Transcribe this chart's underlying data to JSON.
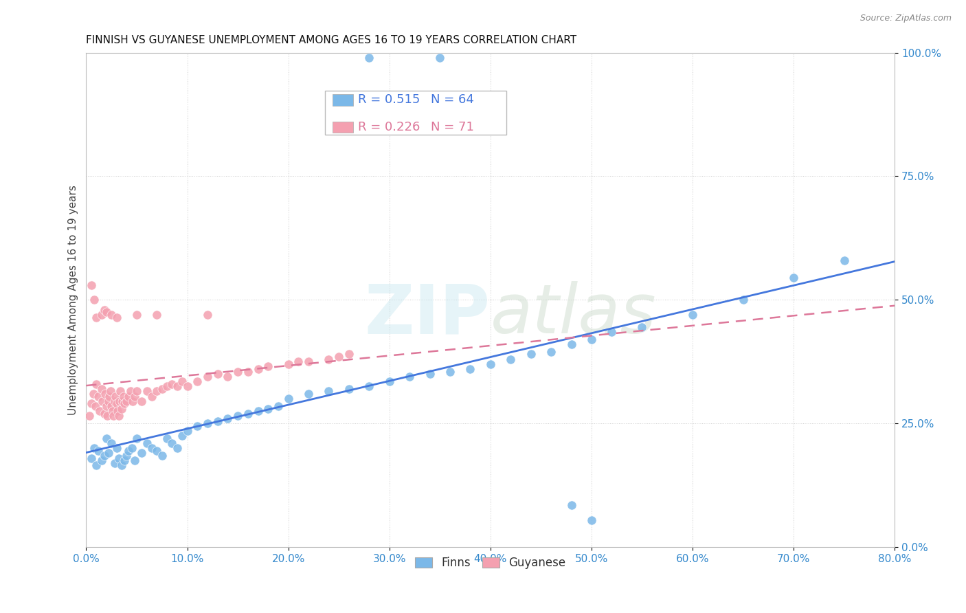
{
  "title": "FINNISH VS GUYANESE UNEMPLOYMENT AMONG AGES 16 TO 19 YEARS CORRELATION CHART",
  "source": "Source: ZipAtlas.com",
  "ylabel": "Unemployment Among Ages 16 to 19 years",
  "xlim": [
    0.0,
    0.8
  ],
  "ylim": [
    0.0,
    1.0
  ],
  "legend_label1": "Finns",
  "legend_label2": "Guyanese",
  "R1": 0.515,
  "N1": 64,
  "R2": 0.226,
  "N2": 71,
  "color_finns": "#7BB8E8",
  "color_guyanese": "#F4A0B0",
  "color_line_finns": "#4477DD",
  "color_line_guyanese": "#DD7799",
  "background_color": "#FFFFFF",
  "finns_x": [
    0.005,
    0.008,
    0.01,
    0.012,
    0.015,
    0.018,
    0.02,
    0.022,
    0.025,
    0.028,
    0.03,
    0.032,
    0.035,
    0.038,
    0.04,
    0.042,
    0.045,
    0.048,
    0.05,
    0.055,
    0.06,
    0.065,
    0.07,
    0.075,
    0.08,
    0.085,
    0.09,
    0.095,
    0.1,
    0.11,
    0.12,
    0.13,
    0.14,
    0.15,
    0.16,
    0.17,
    0.18,
    0.19,
    0.2,
    0.22,
    0.24,
    0.26,
    0.28,
    0.3,
    0.32,
    0.34,
    0.36,
    0.38,
    0.4,
    0.42,
    0.44,
    0.46,
    0.48,
    0.5,
    0.52,
    0.55,
    0.6,
    0.65,
    0.7,
    0.75,
    0.28,
    0.35,
    0.48,
    0.5
  ],
  "finns_y": [
    0.18,
    0.2,
    0.165,
    0.195,
    0.175,
    0.185,
    0.22,
    0.19,
    0.21,
    0.17,
    0.2,
    0.18,
    0.165,
    0.175,
    0.185,
    0.195,
    0.2,
    0.175,
    0.22,
    0.19,
    0.21,
    0.2,
    0.195,
    0.185,
    0.22,
    0.21,
    0.2,
    0.225,
    0.235,
    0.245,
    0.25,
    0.255,
    0.26,
    0.265,
    0.27,
    0.275,
    0.28,
    0.285,
    0.3,
    0.31,
    0.315,
    0.32,
    0.325,
    0.335,
    0.345,
    0.35,
    0.355,
    0.36,
    0.37,
    0.38,
    0.39,
    0.395,
    0.41,
    0.42,
    0.435,
    0.445,
    0.47,
    0.5,
    0.545,
    0.58,
    0.99,
    0.99,
    0.085,
    0.055
  ],
  "guyanese_x": [
    0.003,
    0.005,
    0.007,
    0.009,
    0.01,
    0.012,
    0.013,
    0.015,
    0.016,
    0.018,
    0.019,
    0.02,
    0.021,
    0.022,
    0.023,
    0.024,
    0.025,
    0.026,
    0.027,
    0.028,
    0.029,
    0.03,
    0.031,
    0.032,
    0.033,
    0.034,
    0.035,
    0.036,
    0.037,
    0.038,
    0.04,
    0.042,
    0.044,
    0.046,
    0.048,
    0.05,
    0.055,
    0.06,
    0.065,
    0.07,
    0.075,
    0.08,
    0.085,
    0.09,
    0.095,
    0.1,
    0.11,
    0.12,
    0.13,
    0.14,
    0.15,
    0.16,
    0.17,
    0.18,
    0.2,
    0.21,
    0.22,
    0.24,
    0.25,
    0.26,
    0.005,
    0.008,
    0.01,
    0.015,
    0.018,
    0.02,
    0.025,
    0.03,
    0.05,
    0.07,
    0.12
  ],
  "guyanese_y": [
    0.265,
    0.29,
    0.31,
    0.285,
    0.33,
    0.305,
    0.275,
    0.32,
    0.295,
    0.27,
    0.31,
    0.285,
    0.265,
    0.295,
    0.305,
    0.315,
    0.285,
    0.275,
    0.265,
    0.295,
    0.305,
    0.29,
    0.275,
    0.265,
    0.295,
    0.315,
    0.28,
    0.295,
    0.305,
    0.29,
    0.295,
    0.305,
    0.315,
    0.295,
    0.305,
    0.315,
    0.295,
    0.315,
    0.305,
    0.315,
    0.32,
    0.325,
    0.33,
    0.325,
    0.335,
    0.325,
    0.335,
    0.345,
    0.35,
    0.345,
    0.355,
    0.355,
    0.36,
    0.365,
    0.37,
    0.375,
    0.375,
    0.38,
    0.385,
    0.39,
    0.53,
    0.5,
    0.465,
    0.47,
    0.48,
    0.475,
    0.47,
    0.465,
    0.47,
    0.47,
    0.47
  ]
}
